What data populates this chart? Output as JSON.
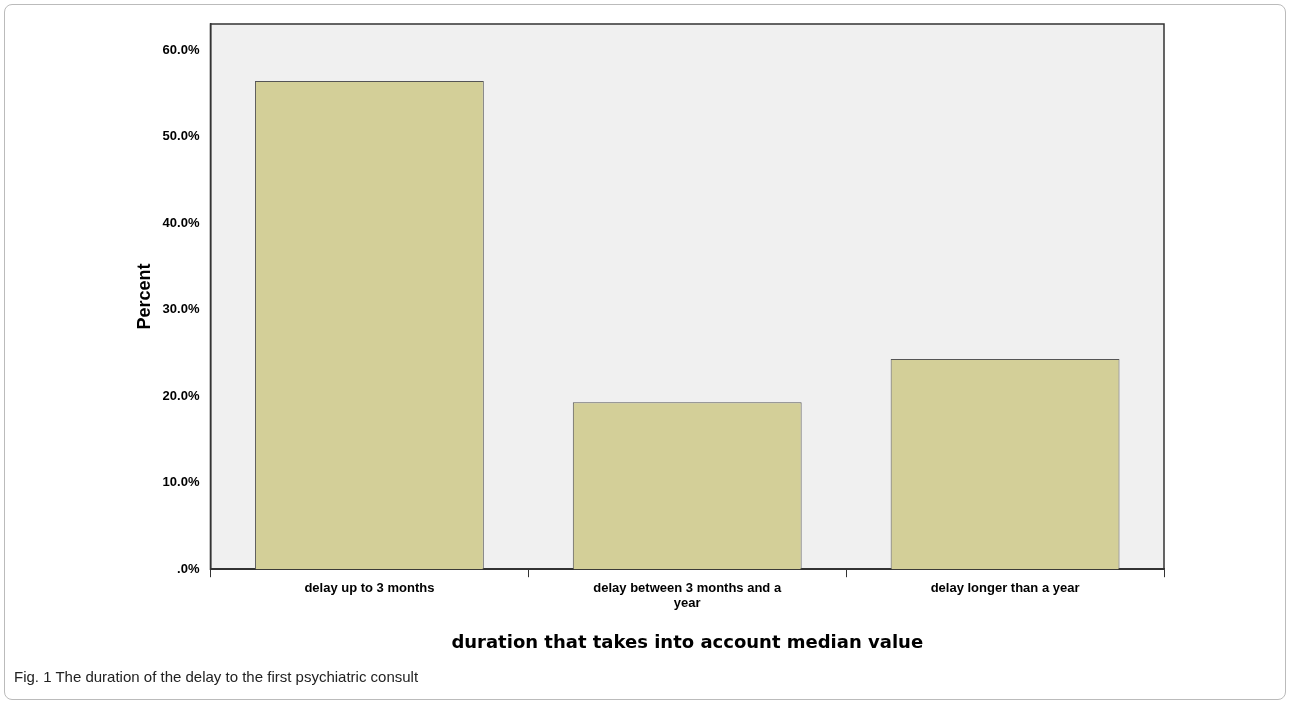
{
  "chart_data": {
    "type": "bar",
    "categories": [
      "delay up to 3 months",
      "delay between 3 months and a year",
      "delay longer than a year"
    ],
    "values": [
      56.4,
      19.3,
      24.3
    ],
    "color": "#d3cf98",
    "xlabel": "duration that takes into account median value",
    "ylabel": "Percent",
    "ylim": [
      0,
      63
    ],
    "yticks": [
      {
        "value": 0,
        "label": ".0%"
      },
      {
        "value": 10,
        "label": "10.0%"
      },
      {
        "value": 20,
        "label": "20.0%"
      },
      {
        "value": 30,
        "label": "30.0%"
      },
      {
        "value": 40,
        "label": "40.0%"
      },
      {
        "value": 50,
        "label": "50.0%"
      },
      {
        "value": 60,
        "label": "60.0%"
      }
    ],
    "grid": false,
    "legend": false,
    "annotations": [
      "Fig. 1 The duration of the delay to the first psychiatric consult"
    ]
  }
}
